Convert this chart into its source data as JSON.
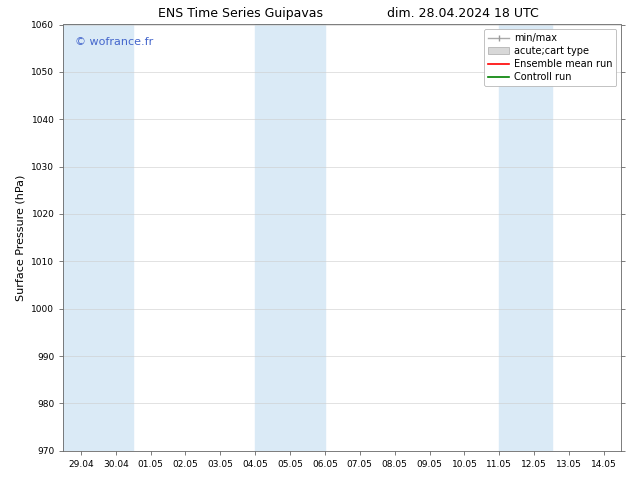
{
  "title_left": "ENS Time Series Guipavas",
  "title_right": "dim. 28.04.2024 18 UTC",
  "ylabel": "Surface Pressure (hPa)",
  "ylim": [
    970,
    1060
  ],
  "yticks": [
    970,
    980,
    990,
    1000,
    1010,
    1020,
    1030,
    1040,
    1050,
    1060
  ],
  "x_labels": [
    "29.04",
    "30.04",
    "01.05",
    "02.05",
    "03.05",
    "04.05",
    "05.05",
    "06.05",
    "07.05",
    "08.05",
    "09.05",
    "10.05",
    "11.05",
    "12.05",
    "13.05",
    "14.05"
  ],
  "x_values": [
    0,
    1,
    2,
    3,
    4,
    5,
    6,
    7,
    8,
    9,
    10,
    11,
    12,
    13,
    14,
    15
  ],
  "shaded_regions": [
    {
      "xmin": -0.5,
      "xmax": 1.5,
      "color": "#daeaf6"
    },
    {
      "xmin": 5.0,
      "xmax": 7.0,
      "color": "#daeaf6"
    },
    {
      "xmin": 12.0,
      "xmax": 13.5,
      "color": "#daeaf6"
    }
  ],
  "watermark_text": "© wofrance.fr",
  "watermark_color": "#4466cc",
  "background_color": "#ffffff",
  "grid_color": "#cccccc",
  "title_fontsize": 9,
  "tick_fontsize": 6.5,
  "ylabel_fontsize": 8,
  "legend_fontsize": 7
}
